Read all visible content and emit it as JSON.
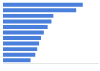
{
  "chart_data": {
    "type": "bar",
    "orientation": "horizontal",
    "categories": [
      null,
      null,
      null,
      null,
      null,
      null,
      null,
      null,
      null,
      null,
      null
    ],
    "values": [
      84,
      77,
      53,
      51,
      47,
      43,
      40,
      38,
      36,
      34,
      29
    ],
    "color": "#4a80dc",
    "xlim": [
      0,
      100
    ],
    "grid": false,
    "tick_labels": false
  }
}
